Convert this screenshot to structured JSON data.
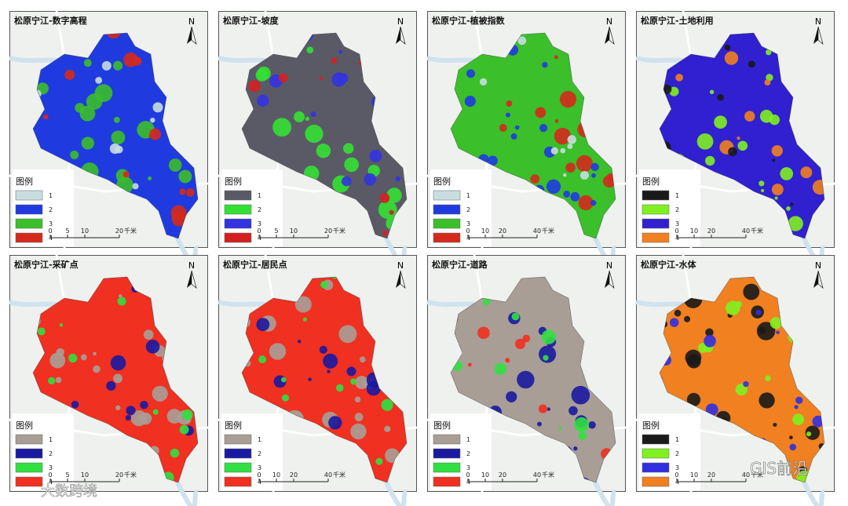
{
  "north": "N",
  "watermarks": [
    "GIS前沿",
    "大数跨境"
  ],
  "panels": [
    {
      "title": "松原宁江-数字高程",
      "legend": {
        "title": "图例",
        "items": [
          {
            "label": "1",
            "color": "#c8dde0"
          },
          {
            "label": "2",
            "color": "#1f3be0"
          },
          {
            "label": "3",
            "color": "#3bbf2a"
          },
          {
            "label": "4",
            "color": "#d42a1c"
          }
        ]
      },
      "scale": {
        "ticks": [
          0,
          5,
          10,
          20
        ],
        "unit": "千米"
      }
    },
    {
      "title": "松原宁江-坡度",
      "legend": {
        "title": "图例",
        "items": [
          {
            "label": "1",
            "color": "#5a5a66"
          },
          {
            "label": "2",
            "color": "#33e033"
          },
          {
            "label": "3",
            "color": "#3333e0"
          },
          {
            "label": "4",
            "color": "#d42020"
          }
        ]
      },
      "scale": {
        "ticks": [
          0,
          5,
          10,
          20
        ],
        "unit": "千米"
      }
    },
    {
      "title": "松原宁江-植被指数",
      "legend": {
        "title": "图例",
        "items": [
          {
            "label": "1",
            "color": "#c8dde0"
          },
          {
            "label": "2",
            "color": "#1f3be0"
          },
          {
            "label": "3",
            "color": "#3bbf2a"
          },
          {
            "label": "4",
            "color": "#d42a1c"
          }
        ]
      },
      "scale": {
        "ticks": [
          0,
          10,
          20,
          40
        ],
        "unit": "千米"
      }
    },
    {
      "title": "松原宁江-土地利用",
      "legend": {
        "title": "图例",
        "items": [
          {
            "label": "1",
            "color": "#1a1a1a"
          },
          {
            "label": "2",
            "color": "#80f020"
          },
          {
            "label": "3",
            "color": "#3020d0"
          },
          {
            "label": "4",
            "color": "#f08020"
          }
        ]
      },
      "scale": {
        "ticks": [
          0,
          10,
          20,
          40
        ],
        "unit": "千米"
      }
    },
    {
      "title": "松原宁江-采矿点",
      "legend": {
        "title": "图例",
        "items": [
          {
            "label": "1",
            "color": "#a89e96"
          },
          {
            "label": "2",
            "color": "#1a1aa0"
          },
          {
            "label": "3",
            "color": "#30e040"
          },
          {
            "label": "4",
            "color": "#f03020"
          }
        ]
      },
      "scale": {
        "ticks": [
          0,
          5,
          10,
          20
        ],
        "unit": "千米"
      }
    },
    {
      "title": "松原宁江-居民点",
      "legend": {
        "title": "图例",
        "items": [
          {
            "label": "1",
            "color": "#a89e96"
          },
          {
            "label": "2",
            "color": "#1a1aa0"
          },
          {
            "label": "3",
            "color": "#30e040"
          },
          {
            "label": "4",
            "color": "#f03020"
          }
        ]
      },
      "scale": {
        "ticks": [
          0,
          10,
          20,
          40
        ],
        "unit": "千米"
      }
    },
    {
      "title": "松原宁江-道路",
      "legend": {
        "title": "图例",
        "items": [
          {
            "label": "1",
            "color": "#a89e96"
          },
          {
            "label": "2",
            "color": "#1a1aa0"
          },
          {
            "label": "3",
            "color": "#30e040"
          },
          {
            "label": "4",
            "color": "#f03020"
          }
        ]
      },
      "scale": {
        "ticks": [
          0,
          10,
          20,
          40
        ],
        "unit": "千米"
      }
    },
    {
      "title": "松原宁江-水体",
      "legend": {
        "title": "图例",
        "items": [
          {
            "label": "1",
            "color": "#1a1a1a"
          },
          {
            "label": "2",
            "color": "#80f020"
          },
          {
            "label": "3",
            "color": "#3030e0"
          },
          {
            "label": "4",
            "color": "#f08020"
          }
        ]
      },
      "scale": {
        "ticks": [
          0,
          10,
          20,
          40
        ],
        "unit": "千米"
      }
    }
  ]
}
